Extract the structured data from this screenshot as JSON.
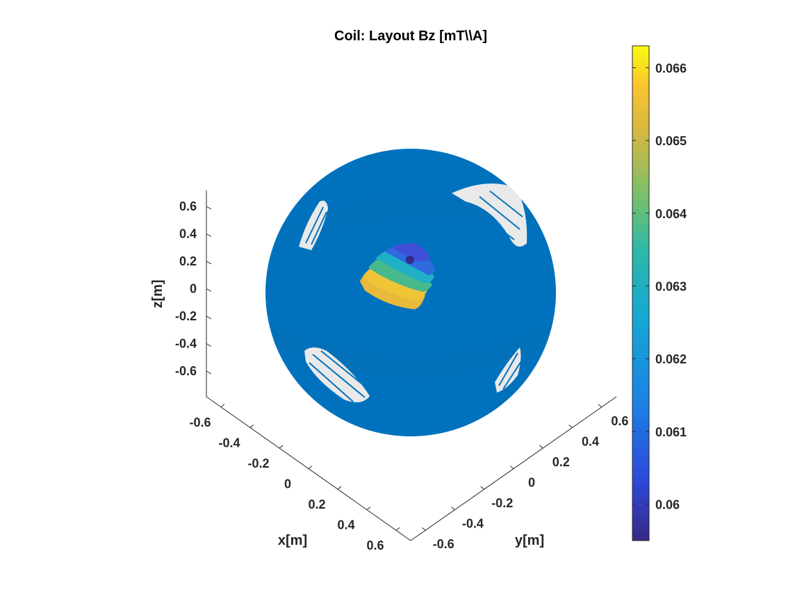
{
  "chart_data": {
    "type": "surface3d",
    "title": "Coil: Layout Bz [mT\\\\A]",
    "xlabel": "x[m]",
    "ylabel": "y[m]",
    "zlabel": "z[m]",
    "x_ticks": [
      "-0.6",
      "-0.4",
      "-0.2",
      "0",
      "0.2",
      "0.4",
      "0.6"
    ],
    "y_ticks": [
      "-0.6",
      "-0.4",
      "-0.2",
      "0",
      "0.2",
      "0.4",
      "0.6"
    ],
    "z_ticks": [
      "0.6",
      "0.4",
      "0.2",
      "0",
      "-0.2",
      "-0.4",
      "-0.6"
    ],
    "colorbar": {
      "ticks": [
        "0.066",
        "0.065",
        "0.064",
        "0.063",
        "0.062",
        "0.061",
        "0.06"
      ],
      "range": [
        0.0595,
        0.0663
      ],
      "colormap": "parula"
    },
    "sphere_color": "#0072bd",
    "grid": false,
    "colors": {
      "parula_bottom": "#352a87",
      "parula_low": "#2f5fd7",
      "parula_mid": "#19acd2",
      "parula_midhigh": "#5ebe85",
      "parula_high": "#e4b93a",
      "parula_top": "#f9fb0e"
    }
  }
}
